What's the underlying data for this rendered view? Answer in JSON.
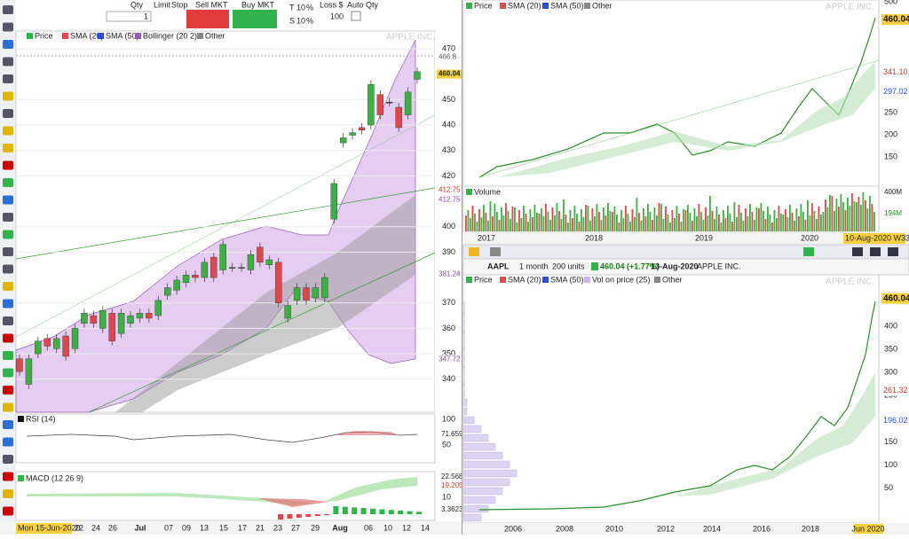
{
  "toolbar": {
    "qty_label": "Qty",
    "qty": "1",
    "limit": "Limit",
    "stop": "Stop",
    "sell": "Sell MKT",
    "buy": "Buy MKT",
    "t": "T",
    "t_pct": "10",
    "t_unit": "%",
    "s": "S",
    "s_pct": "10",
    "s_unit": "%",
    "loss": "Loss $",
    "loss_value": "100",
    "auto_qty": "Auto Qty"
  },
  "main_chart": {
    "legend": [
      "Price",
      "SMA (20)",
      "SMA (50)",
      "Bollinger (20 2)",
      "Other"
    ],
    "watermark": "APPLE INC.",
    "ylim": [
      327,
      477
    ],
    "yticks": [
      340,
      350,
      360,
      370,
      390,
      400,
      420,
      430,
      440,
      450,
      470
    ],
    "price_labels": [
      466.8,
      460.04,
      412.75,
      412.75,
      381.24,
      347.72
    ],
    "open": [
      348,
      338,
      350,
      356,
      352,
      357,
      352,
      362,
      365,
      360,
      366,
      358,
      362,
      364,
      366,
      365,
      373,
      375,
      378,
      381,
      380,
      388,
      383,
      384,
      384,
      383,
      392,
      385,
      386,
      364,
      371,
      376,
      372,
      372,
      403,
      433,
      436,
      439,
      440,
      452,
      449,
      447,
      444,
      458
    ],
    "close": [
      343,
      348,
      355,
      353,
      356,
      349,
      360,
      366,
      362,
      367,
      355,
      366,
      365,
      366,
      364,
      371,
      376,
      379,
      381,
      380,
      386,
      380,
      393,
      384,
      384,
      389,
      386,
      387,
      370,
      369,
      376,
      371,
      376,
      380,
      417,
      435,
      437,
      438,
      456,
      444,
      449,
      439,
      453,
      461
    ],
    "dates": [
      "Mon 15-Jun-2020",
      "22",
      "24",
      "26",
      "Jul",
      "07",
      "09",
      "13",
      "15",
      "17",
      "21",
      "23",
      "27",
      "29",
      "Aug",
      "06",
      "10",
      "12",
      "14"
    ]
  },
  "rsi": {
    "title": "RSI (14)",
    "labels": [
      "100",
      "71.659",
      "50"
    ]
  },
  "macd": {
    "title": "MACD (12 26 9)",
    "labels": [
      "22.568",
      "19.205",
      "10",
      "3.3623"
    ]
  },
  "top_chart": {
    "legend": [
      "Price",
      "SMA (20)",
      "SMA (50)",
      "Other"
    ],
    "watermark": "APPLE INC.",
    "ylim": [
      84,
      504
    ],
    "yticks": [
      150,
      200,
      250,
      500
    ],
    "price_labels": [
      460.04,
      {
        "value": 341.1,
        "label": "341.10"
      },
      297.02
    ],
    "volume_title": "Volume",
    "volume_labels": [
      "400M",
      "194M"
    ],
    "years": [
      "2017",
      "2018",
      "2019",
      "2020"
    ],
    "cursor_date": "10-Aug-2020 W33"
  },
  "bottom_toolbar": {
    "symbol": "AAPL",
    "period": "1 month",
    "units": "200 units",
    "quote": "460.04 (+1.77%)",
    "date": "13-Aug-2020",
    "name": "APPLE INC."
  },
  "bottom_chart": {
    "legend": [
      "Price",
      "SMA (20)",
      "SMA (50)",
      "Vol on price (25)",
      "Other"
    ],
    "watermark": "APPLE INC.",
    "ylim": [
      -25,
      511
    ],
    "yticks": [
      50,
      100,
      150,
      200,
      250,
      300,
      350,
      400
    ],
    "price_labels": [
      460.04,
      261.32,
      196.02
    ],
    "years": [
      "2006",
      "2008",
      "2010",
      "2012",
      "2014",
      "2016",
      "2018",
      "Jun 2020"
    ]
  }
}
